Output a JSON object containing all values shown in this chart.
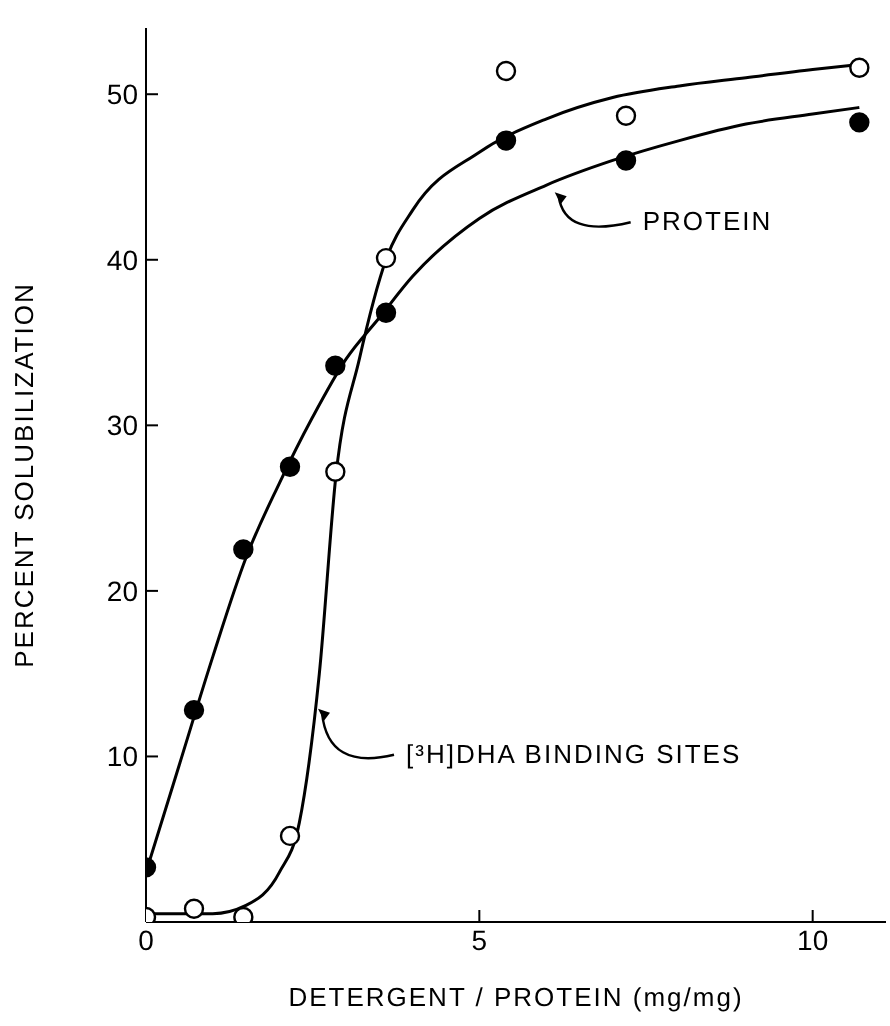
{
  "chart_data": {
    "type": "scatter",
    "xlabel": "DETERGENT / PROTEIN  (mg/mg)",
    "ylabel": "PERCENT SOLUBILIZATION",
    "xlim": [
      0,
      11.1
    ],
    "xticks": [
      0,
      5,
      10
    ],
    "ylim": [
      0,
      54
    ],
    "yticks": [
      10,
      20,
      30,
      40,
      50
    ],
    "grid": false,
    "legend": false,
    "series": [
      {
        "type": "line",
        "marker": "none",
        "color": "#000000",
        "x": [
          0,
          0.5,
          1,
          1.5,
          2,
          2.5,
          3,
          3.5,
          4,
          5,
          6,
          7,
          8,
          9,
          10,
          10.7
        ],
        "values": [
          3,
          9.5,
          16,
          22,
          26.5,
          30.5,
          34,
          36.5,
          39,
          42.5,
          44.5,
          46,
          47.2,
          48.2,
          48.8,
          49.2
        ]
      },
      {
        "type": "line",
        "marker": "none",
        "color": "#000000",
        "x": [
          0,
          1,
          1.5,
          2,
          2.3,
          2.6,
          2.85,
          3.2,
          3.6,
          4,
          5,
          6,
          7,
          8,
          9,
          10,
          10.7
        ],
        "values": [
          0.5,
          0.5,
          1,
          3,
          6,
          15,
          27,
          34,
          40,
          43,
          46.5,
          48.5,
          49.8,
          50.5,
          51,
          51.5,
          51.8
        ]
      },
      {
        "marker": "circle",
        "color": "#000000",
        "x": [
          0,
          0.72,
          1.46,
          2.16,
          2.84,
          3.6,
          5.4,
          7.2,
          10.7
        ],
        "values": [
          3.3,
          12.8,
          22.5,
          27.5,
          33.6,
          36.8,
          47.2,
          46.0,
          48.3
        ]
      },
      {
        "marker": "circle",
        "color": "#ffffff",
        "x": [
          0,
          0.72,
          1.46,
          2.16,
          2.84,
          3.6,
          5.4,
          7.2,
          10.7
        ],
        "values": [
          0.3,
          0.8,
          0.3,
          5.2,
          27.2,
          40.1,
          51.4,
          48.7,
          51.6
        ]
      }
    ],
    "annotations": [
      {
        "text": "PROTEIN",
        "x": 6.1,
        "y": 44.2
      },
      {
        "text": "[³H]DHA BINDING SITES",
        "x": 2.55,
        "y": 13
      }
    ]
  }
}
